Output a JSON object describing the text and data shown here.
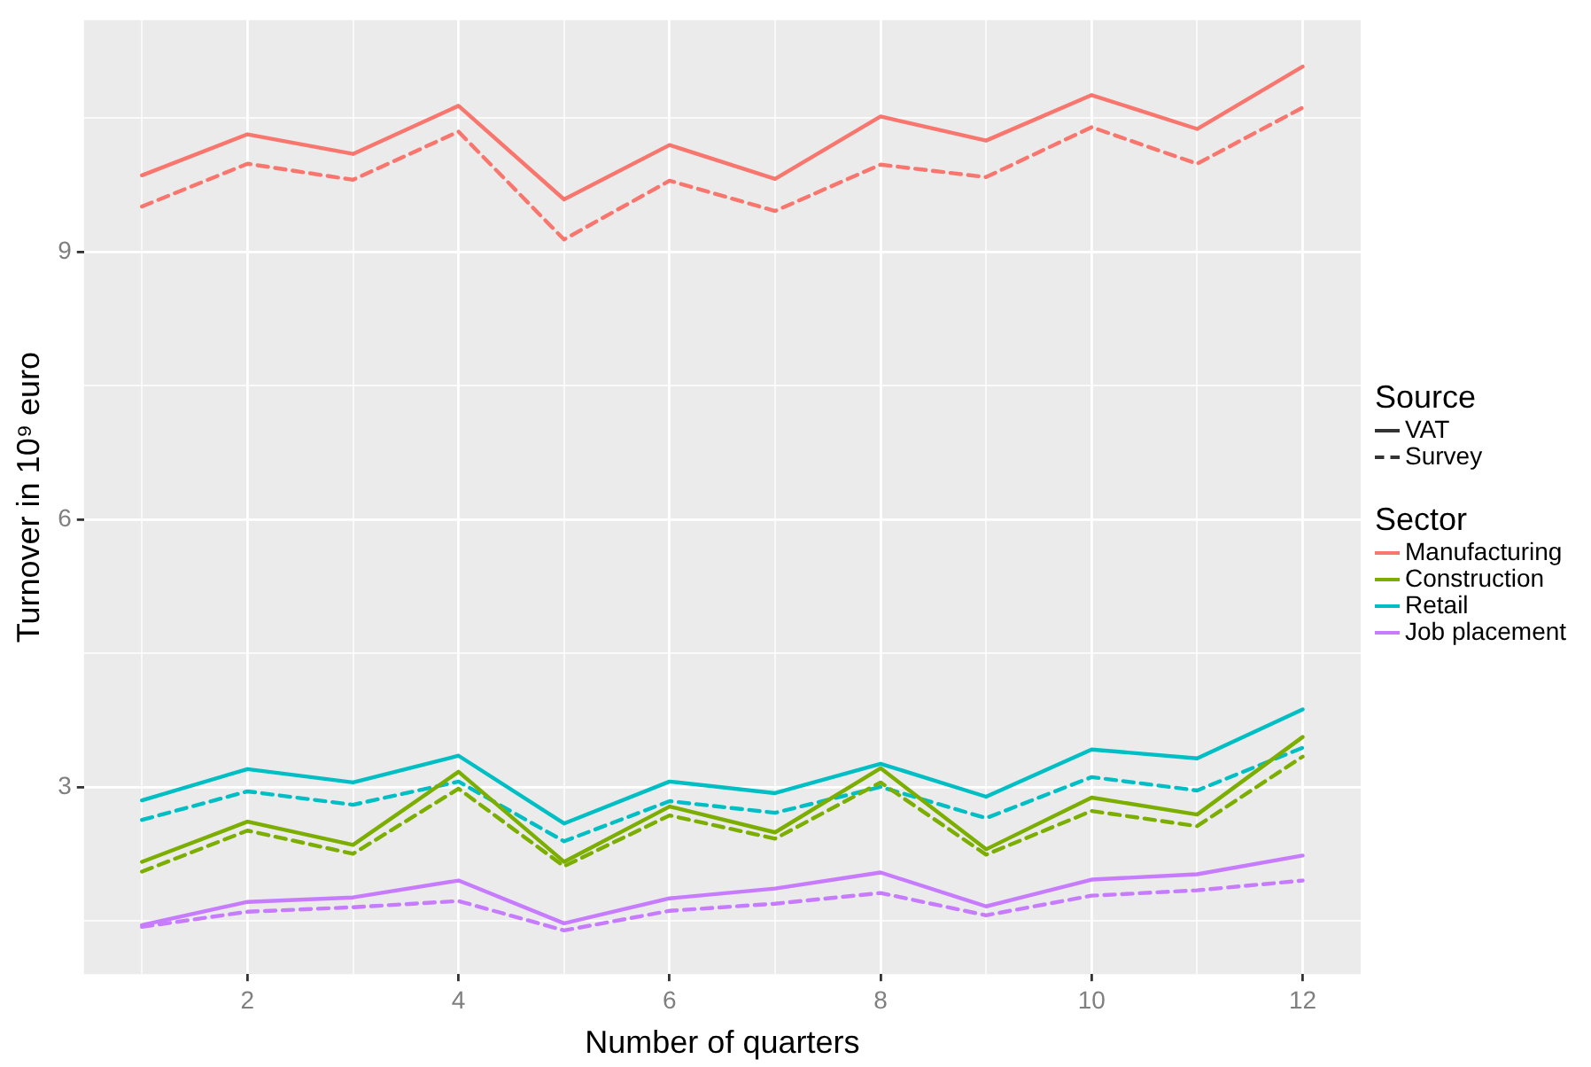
{
  "chart_data": {
    "type": "line",
    "xlabel": "Number of quarters",
    "ylabel": "Turnover in 10⁹ euro",
    "legend_title": "Sector",
    "annotations": [
      "Source",
      "VAT",
      "Survey"
    ],
    "x": [
      1,
      2,
      3,
      4,
      5,
      6,
      7,
      8,
      9,
      10,
      11,
      12
    ],
    "xlim": [
      0.45,
      12.55
    ],
    "xticks": [
      {
        "value": 1,
        "label": null
      },
      2,
      {
        "value": 3,
        "label": null
      },
      4,
      {
        "value": 5,
        "label": null
      },
      6,
      {
        "value": 7,
        "label": null
      },
      8,
      {
        "value": 9,
        "label": null
      },
      10,
      {
        "value": 11,
        "label": null
      },
      12
    ],
    "ylim": [
      0.9,
      11.6
    ],
    "yticks": [
      {
        "value": 1.5,
        "label": null
      },
      3,
      {
        "value": 4.5,
        "label": null
      },
      6,
      {
        "value": 7.5,
        "label": null
      },
      9,
      {
        "value": 10.5,
        "label": null
      }
    ],
    "grid": true,
    "legend": "right",
    "marker": "none",
    "series": [
      {
        "name": "Manufacturing",
        "color": "#f8766d",
        "line_style": "solid",
        "values": [
          9.86,
          10.32,
          10.1,
          10.64,
          9.59,
          10.2,
          9.82,
          10.52,
          10.25,
          10.76,
          10.38,
          11.08
        ]
      },
      {
        "color": "#f8766d",
        "line_style": "dashed",
        "values": [
          9.51,
          9.99,
          9.81,
          10.35,
          9.14,
          9.8,
          9.46,
          9.98,
          9.84,
          10.4,
          9.99,
          10.62
        ]
      },
      {
        "name": "Construction",
        "color": "#7cae00",
        "line_style": "solid",
        "values": [
          2.16,
          2.61,
          2.35,
          3.17,
          2.16,
          2.78,
          2.49,
          3.21,
          2.3,
          2.88,
          2.69,
          3.56
        ]
      },
      {
        "color": "#7cae00",
        "line_style": "dashed",
        "values": [
          2.05,
          2.51,
          2.25,
          2.98,
          2.11,
          2.68,
          2.42,
          3.05,
          2.24,
          2.73,
          2.56,
          3.34
        ]
      },
      {
        "name": "Retail",
        "color": "#00bfc4",
        "line_style": "solid",
        "values": [
          2.85,
          3.2,
          3.05,
          3.35,
          2.59,
          3.06,
          2.93,
          3.26,
          2.89,
          3.42,
          3.32,
          3.87
        ]
      },
      {
        "color": "#00bfc4",
        "line_style": "dashed",
        "values": [
          2.63,
          2.95,
          2.8,
          3.06,
          2.39,
          2.84,
          2.71,
          3.0,
          2.65,
          3.11,
          2.96,
          3.44
        ]
      },
      {
        "name": "Job placement",
        "color": "#c77cff",
        "line_style": "solid",
        "values": [
          1.45,
          1.71,
          1.76,
          1.95,
          1.47,
          1.75,
          1.86,
          2.04,
          1.66,
          1.96,
          2.02,
          2.23
        ]
      },
      {
        "color": "#c77cff",
        "line_style": "dashed",
        "values": [
          1.43,
          1.6,
          1.65,
          1.72,
          1.39,
          1.61,
          1.69,
          1.81,
          1.56,
          1.78,
          1.84,
          1.95
        ]
      }
    ]
  }
}
